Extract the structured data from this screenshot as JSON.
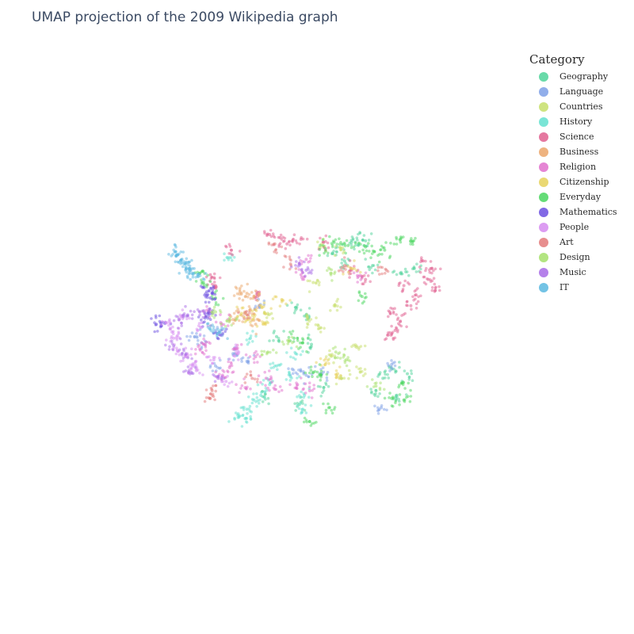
{
  "chart_data": {
    "type": "scatter",
    "title": "UMAP projection of the 2009 Wikipedia graph",
    "xlabel": "",
    "ylabel": "",
    "x_range": [
      -10,
      10
    ],
    "y_range": [
      -10,
      10
    ],
    "grid": false,
    "legend_title": "Category",
    "legend_placement": "top-right",
    "marker_opacity": 0.55,
    "series": [
      {
        "name": "Geography",
        "color": "#4fd39a",
        "points": [
          [
            3.8,
            5.6
          ],
          [
            4.2,
            5.5
          ],
          [
            4.6,
            5.7
          ],
          [
            3.4,
            4.4
          ],
          [
            5.0,
            4.1
          ],
          [
            6.6,
            3.6
          ],
          [
            7.4,
            3.9
          ],
          [
            0.6,
            1.4
          ],
          [
            1.2,
            0.9
          ],
          [
            -0.5,
            -0.5
          ],
          [
            1.5,
            -1.0
          ],
          [
            5.6,
            -3.2
          ],
          [
            6.1,
            -2.6
          ],
          [
            5.2,
            -4.0
          ],
          [
            7.0,
            -2.9
          ],
          [
            -1.2,
            -4.4
          ],
          [
            0.8,
            -4.9
          ],
          [
            2.2,
            -3.8
          ],
          [
            6.4,
            -4.4
          ],
          [
            2.7,
            4.9
          ]
        ]
      },
      {
        "name": "Language",
        "color": "#7ea0e6",
        "points": [
          [
            -4.8,
            -0.9
          ],
          [
            -5.2,
            -0.5
          ],
          [
            -3.9,
            -0.3
          ],
          [
            -3.0,
            -1.6
          ],
          [
            -2.2,
            -2.1
          ],
          [
            0.4,
            -2.6
          ],
          [
            1.2,
            -3.0
          ],
          [
            6.1,
            -2.3
          ],
          [
            5.5,
            -5.1
          ],
          [
            -1.5,
            1.5
          ],
          [
            2.1,
            -2.9
          ],
          [
            -4.0,
            -2.4
          ]
        ]
      },
      {
        "name": "Countries",
        "color": "#c7df6a",
        "points": [
          [
            1.6,
            3.0
          ],
          [
            2.1,
            5.4
          ],
          [
            3.2,
            5.2
          ],
          [
            1.3,
            0.6
          ],
          [
            1.9,
            0.2
          ],
          [
            2.6,
            -1.7
          ],
          [
            4.1,
            -1.2
          ],
          [
            4.3,
            -2.8
          ],
          [
            3.2,
            -3.2
          ],
          [
            -1.0,
            1.0
          ],
          [
            2.8,
            1.5
          ]
        ]
      },
      {
        "name": "History",
        "color": "#63e0cf",
        "points": [
          [
            -2.7,
            -5.5
          ],
          [
            -2.3,
            -5.8
          ],
          [
            -1.8,
            -4.6
          ],
          [
            -0.9,
            -3.6
          ],
          [
            0.3,
            -3.1
          ],
          [
            -0.5,
            -2.4
          ],
          [
            0.6,
            -1.6
          ],
          [
            -2.2,
            -5.2
          ],
          [
            -1.4,
            -4.3
          ],
          [
            1.0,
            -5.2
          ],
          [
            -3.3,
            4.6
          ],
          [
            -2.0,
            -0.6
          ],
          [
            1.1,
            -4.3
          ]
        ]
      },
      {
        "name": "Science",
        "color": "#e0608f",
        "points": [
          [
            -0.9,
            6.1
          ],
          [
            -0.3,
            5.9
          ],
          [
            0.1,
            5.5
          ],
          [
            0.9,
            5.8
          ],
          [
            -4.0,
            2.8
          ],
          [
            -4.3,
            3.5
          ],
          [
            -3.1,
            5.1
          ],
          [
            7.9,
            4.4
          ],
          [
            8.4,
            3.9
          ],
          [
            8.6,
            2.5
          ],
          [
            7.5,
            2.2
          ],
          [
            7.2,
            1.5
          ],
          [
            6.0,
            1.1
          ],
          [
            6.6,
            0.5
          ],
          [
            5.9,
            -0.4
          ],
          [
            2.2,
            5.6
          ],
          [
            3.8,
            3.8
          ],
          [
            -1.6,
            2.1
          ],
          [
            4.6,
            3.2
          ],
          [
            8.2,
            3.2
          ],
          [
            6.8,
            2.8
          ],
          [
            6.3,
            -0.1
          ]
        ]
      },
      {
        "name": "Business",
        "color": "#eba66a",
        "points": [
          [
            -2.6,
            2.4
          ],
          [
            -2.2,
            2.3
          ],
          [
            -1.8,
            2.1
          ],
          [
            -3.0,
            0.6
          ],
          [
            -2.4,
            0.8
          ],
          [
            -1.7,
            0.3
          ],
          [
            -2.0,
            1.2
          ]
        ]
      },
      {
        "name": "Religion",
        "color": "#e070cc",
        "points": [
          [
            -4.9,
            -1.3
          ],
          [
            -4.6,
            -1.0
          ],
          [
            -3.6,
            -3.0
          ],
          [
            -3.2,
            -2.5
          ],
          [
            -2.3,
            -3.8
          ],
          [
            -1.1,
            -3.2
          ],
          [
            -0.6,
            -3.9
          ],
          [
            0.7,
            -3.6
          ],
          [
            1.4,
            -4.0
          ],
          [
            -4.4,
            1.1
          ],
          [
            -3.7,
            0.4
          ],
          [
            -2.8,
            -1.3
          ],
          [
            0.9,
            3.5
          ],
          [
            1.2,
            4.5
          ],
          [
            4.2,
            3.4
          ],
          [
            -1.7,
            -1.8
          ]
        ]
      },
      {
        "name": "Citizenship",
        "color": "#e6d15a",
        "points": [
          [
            -2.5,
            1.0
          ],
          [
            -2.1,
            0.6
          ],
          [
            -1.4,
            1.5
          ],
          [
            -1.2,
            0.4
          ],
          [
            2.3,
            -2.3
          ],
          [
            3.0,
            -2.9
          ],
          [
            -0.2,
            1.9
          ],
          [
            3.8,
            3.9
          ]
        ]
      },
      {
        "name": "Everyday",
        "color": "#4ad65f",
        "points": [
          [
            2.3,
            5.2
          ],
          [
            2.8,
            5.6
          ],
          [
            3.6,
            5.4
          ],
          [
            4.6,
            5.3
          ],
          [
            5.1,
            5.0
          ],
          [
            6.6,
            5.8
          ],
          [
            7.2,
            5.7
          ],
          [
            5.7,
            5.1
          ],
          [
            -4.7,
            3.0
          ],
          [
            -4.9,
            3.6
          ],
          [
            -4.0,
            2.0
          ],
          [
            0.5,
            -0.6
          ],
          [
            1.0,
            -0.9
          ],
          [
            1.6,
            -2.8
          ],
          [
            2.0,
            -3.0
          ],
          [
            2.5,
            -5.1
          ],
          [
            6.7,
            -3.5
          ],
          [
            6.1,
            -4.5
          ],
          [
            6.8,
            -4.6
          ],
          [
            1.4,
            -6.0
          ],
          [
            4.4,
            2.1
          ]
        ]
      },
      {
        "name": "Mathematics",
        "color": "#6b4fe0",
        "points": [
          [
            -4.5,
            2.4
          ],
          [
            -4.2,
            2.3
          ],
          [
            -4.3,
            2.0
          ],
          [
            -7.4,
            0.3
          ],
          [
            -7.1,
            0.2
          ],
          [
            -4.3,
            1.0
          ],
          [
            -3.7,
            -0.4
          ],
          [
            -4.6,
            0.7
          ]
        ]
      },
      {
        "name": "People",
        "color": "#d68bf0",
        "points": [
          [
            -6.6,
            0.4
          ],
          [
            -6.4,
            -0.6
          ],
          [
            -6.2,
            -1.4
          ],
          [
            -5.3,
            -2.4
          ],
          [
            -5.1,
            -2.7
          ],
          [
            -6.5,
            -0.2
          ],
          [
            -4.1,
            -2.0
          ],
          [
            -3.4,
            -3.4
          ],
          [
            -2.7,
            -1.6
          ],
          [
            -5.7,
            -1.8
          ],
          [
            -4.8,
            0.1
          ],
          [
            -5.9,
            0.8
          ]
        ]
      },
      {
        "name": "Art",
        "color": "#e37a7a",
        "points": [
          [
            -0.6,
            5.5
          ],
          [
            -4.2,
            -4.0
          ],
          [
            -4.3,
            -4.5
          ],
          [
            -1.9,
            -3.2
          ],
          [
            3.4,
            4.1
          ],
          [
            5.8,
            3.8
          ],
          [
            -2.2,
            0.9
          ],
          [
            0.3,
            4.2
          ]
        ]
      },
      {
        "name": "Design",
        "color": "#a6e06b",
        "points": [
          [
            -4.0,
            1.1
          ],
          [
            -3.2,
            0.6
          ],
          [
            0.2,
            -0.8
          ],
          [
            -1.0,
            -1.5
          ],
          [
            2.9,
            -1.5
          ],
          [
            3.5,
            -2.0
          ],
          [
            2.6,
            3.6
          ],
          [
            5.2,
            -3.7
          ]
        ]
      },
      {
        "name": "Music",
        "color": "#a86be6",
        "points": [
          [
            -6.1,
            0.6
          ],
          [
            -5.6,
            0.9
          ],
          [
            -4.9,
            1.1
          ],
          [
            -6.4,
            -1.1
          ],
          [
            -5.7,
            -1.6
          ],
          [
            -5.4,
            -2.8
          ],
          [
            0.8,
            4.2
          ],
          [
            1.2,
            3.8
          ],
          [
            -3.9,
            -3.1
          ]
        ]
      },
      {
        "name": "IT",
        "color": "#5bb9e0",
        "points": [
          [
            -6.2,
            4.8
          ],
          [
            -6.0,
            4.4
          ],
          [
            -5.8,
            4.2
          ],
          [
            -5.5,
            3.9
          ],
          [
            -5.3,
            3.6
          ],
          [
            -5.0,
            3.4
          ],
          [
            -6.3,
            5.0
          ],
          [
            -5.7,
            4.0
          ],
          [
            -4.3,
            0.0
          ],
          [
            -3.9,
            -0.3
          ]
        ]
      }
    ]
  }
}
